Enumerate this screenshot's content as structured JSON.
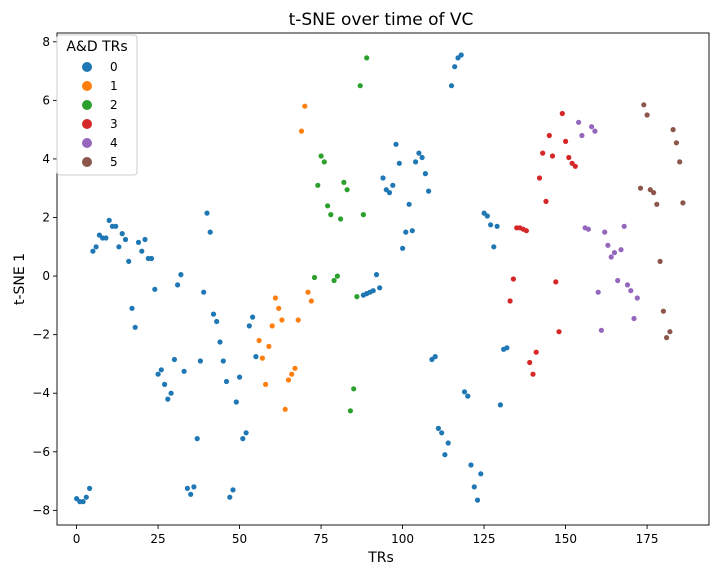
{
  "chart_data": {
    "type": "scatter",
    "title": "t-SNE over time of VC",
    "xlabel": "TRs",
    "ylabel": "t-SNE 1",
    "xlim": [
      -6,
      194
    ],
    "ylim": [
      -8.5,
      8.3
    ],
    "xticks": [
      0,
      25,
      50,
      75,
      100,
      125,
      150,
      175
    ],
    "yticks": [
      -8,
      -6,
      -4,
      -2,
      0,
      2,
      4,
      6,
      8
    ],
    "grid": false,
    "legend": {
      "title": "A&D TRs",
      "placement": "top-left"
    },
    "series": [
      {
        "name": "0",
        "color": "#1f77b4",
        "points": [
          [
            0,
            -7.6
          ],
          [
            1,
            -7.7
          ],
          [
            2,
            -7.7
          ],
          [
            3,
            -7.55
          ],
          [
            4,
            -7.25
          ],
          [
            5,
            0.85
          ],
          [
            6,
            1.0
          ],
          [
            7,
            1.4
          ],
          [
            8,
            1.3
          ],
          [
            9,
            1.3
          ],
          [
            10,
            1.9
          ],
          [
            11,
            1.7
          ],
          [
            12,
            1.7
          ],
          [
            13,
            1.0
          ],
          [
            14,
            1.45
          ],
          [
            15,
            1.25
          ],
          [
            16,
            0.5
          ],
          [
            17,
            -1.1
          ],
          [
            18,
            -1.75
          ],
          [
            19,
            1.15
          ],
          [
            20,
            0.85
          ],
          [
            21,
            1.25
          ],
          [
            22,
            0.6
          ],
          [
            23,
            0.6
          ],
          [
            24,
            -0.45
          ],
          [
            25,
            -3.35
          ],
          [
            26,
            -3.2
          ],
          [
            27,
            -3.7
          ],
          [
            28,
            -4.2
          ],
          [
            29,
            -4.0
          ],
          [
            30,
            -2.85
          ],
          [
            31,
            -0.3
          ],
          [
            32,
            0.05
          ],
          [
            33,
            -3.25
          ],
          [
            34,
            -7.25
          ],
          [
            35,
            -7.45
          ],
          [
            36,
            -7.2
          ],
          [
            37,
            -5.55
          ],
          [
            38,
            -2.9
          ],
          [
            39,
            -0.55
          ],
          [
            40,
            2.15
          ],
          [
            41,
            1.5
          ],
          [
            42,
            -1.3
          ],
          [
            43,
            -1.55
          ],
          [
            44,
            -2.25
          ],
          [
            45,
            -2.9
          ],
          [
            46,
            -3.6
          ],
          [
            47,
            -7.55
          ],
          [
            48,
            -7.3
          ],
          [
            49,
            -4.3
          ],
          [
            50,
            -3.45
          ],
          [
            51,
            -5.55
          ],
          [
            52,
            -5.35
          ],
          [
            53,
            -1.7
          ],
          [
            54,
            -1.4
          ],
          [
            55,
            -2.75
          ],
          [
            88,
            -0.65
          ],
          [
            89,
            -0.6
          ],
          [
            90,
            -0.55
          ],
          [
            91,
            -0.5
          ],
          [
            92,
            0.05
          ],
          [
            93,
            -0.4
          ],
          [
            94,
            3.35
          ],
          [
            95,
            2.95
          ],
          [
            96,
            2.85
          ],
          [
            97,
            3.1
          ],
          [
            98,
            4.5
          ],
          [
            99,
            3.85
          ],
          [
            100,
            0.95
          ],
          [
            101,
            1.5
          ],
          [
            102,
            2.45
          ],
          [
            103,
            1.55
          ],
          [
            104,
            3.9
          ],
          [
            105,
            4.2
          ],
          [
            106,
            4.05
          ],
          [
            107,
            3.5
          ],
          [
            108,
            2.9
          ],
          [
            109,
            -2.85
          ],
          [
            110,
            -2.75
          ],
          [
            111,
            -5.2
          ],
          [
            112,
            -5.35
          ],
          [
            113,
            -6.1
          ],
          [
            114,
            -5.7
          ],
          [
            115,
            6.5
          ],
          [
            116,
            7.15
          ],
          [
            117,
            7.45
          ],
          [
            118,
            7.55
          ],
          [
            119,
            -3.95
          ],
          [
            120,
            -4.1
          ],
          [
            121,
            -6.45
          ],
          [
            122,
            -7.2
          ],
          [
            123,
            -7.65
          ],
          [
            124,
            -6.75
          ],
          [
            125,
            2.15
          ],
          [
            126,
            2.05
          ],
          [
            127,
            1.75
          ],
          [
            128,
            1.0
          ],
          [
            129,
            1.7
          ],
          [
            130,
            -4.4
          ],
          [
            131,
            -2.5
          ],
          [
            132,
            -2.45
          ]
        ]
      },
      {
        "name": "1",
        "color": "#ff7f0e",
        "points": [
          [
            56,
            -2.2
          ],
          [
            57,
            -2.8
          ],
          [
            58,
            -3.7
          ],
          [
            59,
            -2.4
          ],
          [
            60,
            -1.7
          ],
          [
            61,
            -0.75
          ],
          [
            62,
            -1.1
          ],
          [
            63,
            -1.5
          ],
          [
            64,
            -4.55
          ],
          [
            65,
            -3.55
          ],
          [
            66,
            -3.35
          ],
          [
            67,
            -3.15
          ],
          [
            68,
            -1.5
          ],
          [
            69,
            4.95
          ],
          [
            70,
            5.8
          ],
          [
            71,
            -0.55
          ],
          [
            72,
            -0.85
          ]
        ]
      },
      {
        "name": "2",
        "color": "#2ca02c",
        "points": [
          [
            73,
            -0.05
          ],
          [
            74,
            3.1
          ],
          [
            75,
            4.1
          ],
          [
            76,
            3.9
          ],
          [
            77,
            2.4
          ],
          [
            78,
            2.1
          ],
          [
            79,
            -0.15
          ],
          [
            80,
            0.0
          ],
          [
            81,
            1.95
          ],
          [
            82,
            3.2
          ],
          [
            83,
            2.95
          ],
          [
            84,
            -4.6
          ],
          [
            85,
            -3.85
          ],
          [
            86,
            -0.7
          ],
          [
            87,
            6.5
          ],
          [
            88,
            2.1
          ],
          [
            89,
            7.45
          ]
        ]
      },
      {
        "name": "3",
        "color": "#d62728",
        "points": [
          [
            133,
            -0.85
          ],
          [
            134,
            -0.1
          ],
          [
            135,
            1.65
          ],
          [
            136,
            1.65
          ],
          [
            137,
            1.6
          ],
          [
            138,
            1.55
          ],
          [
            139,
            -2.95
          ],
          [
            140,
            -3.35
          ],
          [
            141,
            -2.6
          ],
          [
            142,
            3.35
          ],
          [
            143,
            4.2
          ],
          [
            144,
            2.55
          ],
          [
            145,
            4.8
          ],
          [
            146,
            4.1
          ],
          [
            147,
            -0.2
          ],
          [
            148,
            -1.9
          ],
          [
            149,
            5.55
          ],
          [
            150,
            4.6
          ],
          [
            151,
            4.05
          ],
          [
            152,
            3.85
          ],
          [
            153,
            3.75
          ]
        ]
      },
      {
        "name": "4",
        "color": "#9467bd",
        "points": [
          [
            154,
            5.25
          ],
          [
            155,
            4.8
          ],
          [
            156,
            1.65
          ],
          [
            157,
            1.6
          ],
          [
            158,
            5.1
          ],
          [
            159,
            4.95
          ],
          [
            160,
            -0.55
          ],
          [
            161,
            -1.85
          ],
          [
            162,
            1.5
          ],
          [
            163,
            1.05
          ],
          [
            164,
            0.65
          ],
          [
            165,
            0.8
          ],
          [
            166,
            -0.15
          ],
          [
            167,
            0.9
          ],
          [
            168,
            1.7
          ],
          [
            169,
            -0.3
          ],
          [
            170,
            -0.5
          ],
          [
            171,
            -1.45
          ],
          [
            172,
            -0.75
          ]
        ]
      },
      {
        "name": "5",
        "color": "#8c564b",
        "points": [
          [
            173,
            3.0
          ],
          [
            174,
            5.85
          ],
          [
            175,
            5.5
          ],
          [
            176,
            2.95
          ],
          [
            177,
            2.85
          ],
          [
            178,
            2.45
          ],
          [
            179,
            0.5
          ],
          [
            180,
            -1.2
          ],
          [
            181,
            -2.1
          ],
          [
            182,
            -1.9
          ],
          [
            183,
            5.0
          ],
          [
            184,
            4.55
          ],
          [
            185,
            3.9
          ],
          [
            186,
            2.5
          ]
        ]
      }
    ]
  }
}
